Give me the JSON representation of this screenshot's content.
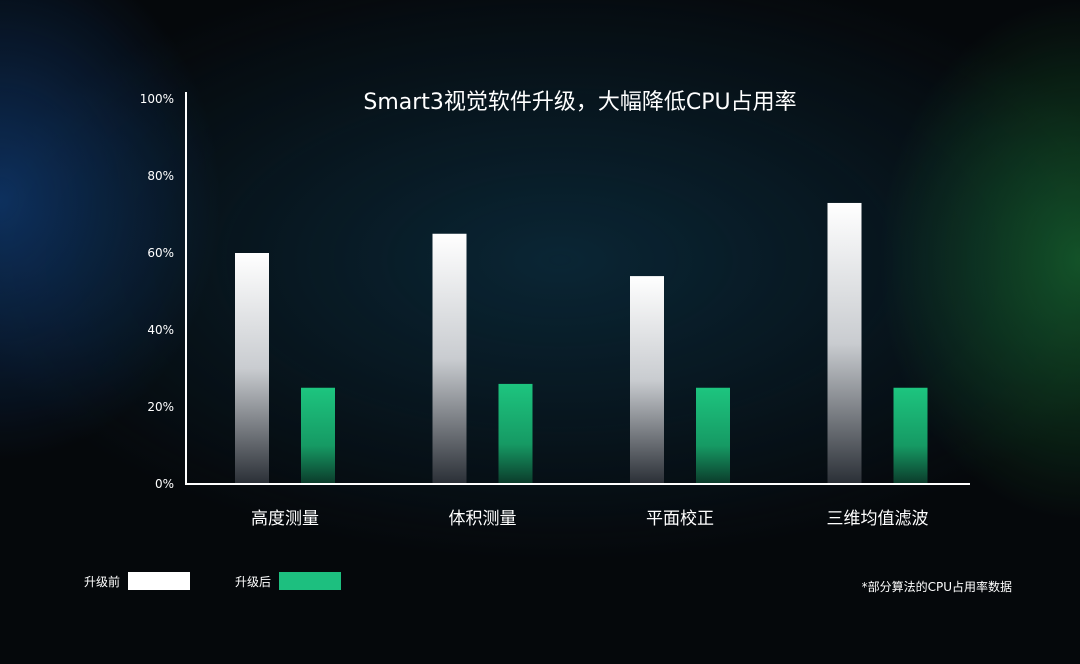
{
  "chart_data": {
    "type": "bar",
    "title": "Smart3视觉软件升级，大幅降低CPU占用率",
    "categories": [
      "高度测量",
      "体积测量",
      "平面校正",
      "三维均值滤波"
    ],
    "series": [
      {
        "name": "升级前",
        "values": [
          60,
          65,
          54,
          73
        ],
        "color": "#ffffff"
      },
      {
        "name": "升级后",
        "values": [
          25,
          26,
          25,
          25
        ],
        "color": "#1dbf7f"
      }
    ],
    "ylim": [
      0,
      100
    ],
    "yticks": [
      "0%",
      "20%",
      "40%",
      "60%",
      "80%",
      "100%"
    ],
    "grid": false,
    "legend": "bottom-left",
    "note": "*部分算法的CPU占用率数据"
  }
}
